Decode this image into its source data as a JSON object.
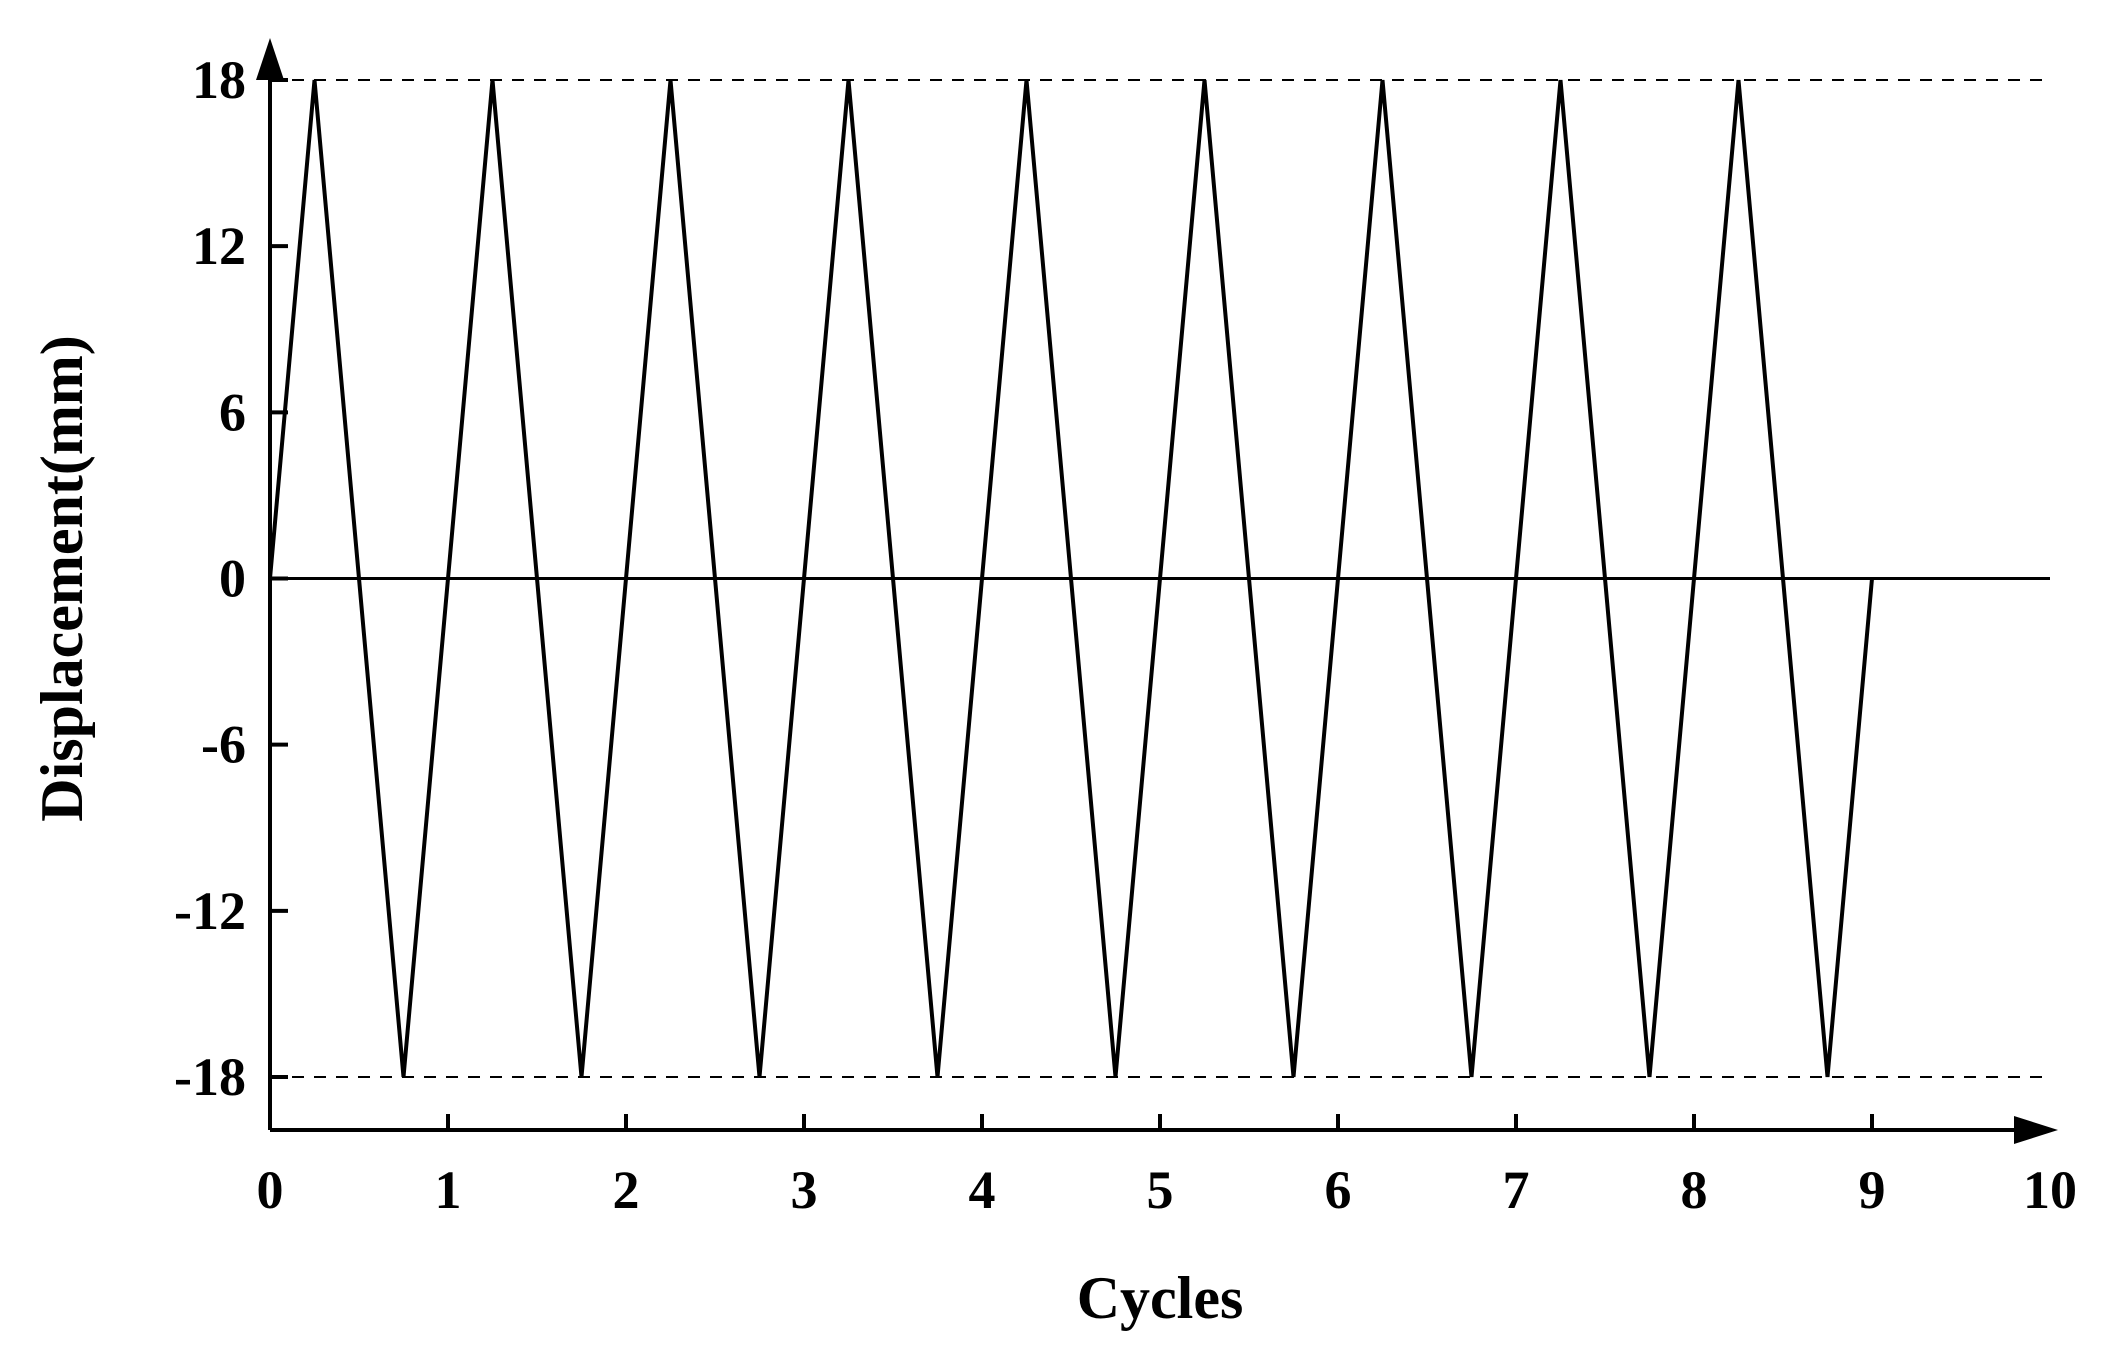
{
  "chart_data": {
    "type": "line",
    "xlabel": "Cycles",
    "ylabel": "Displacement(mm)",
    "xlim": [
      0,
      10
    ],
    "ylim": [
      -20,
      20
    ],
    "x_ticks": [
      0,
      1,
      2,
      3,
      4,
      5,
      6,
      7,
      8,
      9,
      10
    ],
    "y_ticks": [
      -18,
      -12,
      -6,
      0,
      6,
      12,
      18
    ],
    "x_tick_labels": [
      "0",
      "1",
      "2",
      "3",
      "4",
      "5",
      "6",
      "7",
      "8",
      "9",
      "10"
    ],
    "y_tick_labels": [
      "-18",
      "-12",
      "-6",
      "0",
      "6",
      "12",
      "18"
    ],
    "reference_lines": [
      {
        "y": 18,
        "style": "dashed"
      },
      {
        "y": -18,
        "style": "dashed"
      },
      {
        "y": 0,
        "style": "solid"
      }
    ],
    "series": [
      {
        "x": [
          0,
          0.25,
          0.75,
          1.25,
          1.75,
          2.25,
          2.75,
          3.25,
          3.75,
          4.25,
          4.75,
          5.25,
          5.75,
          6.25,
          6.75,
          7.25,
          7.75,
          8.25,
          8.75,
          9
        ],
        "y": [
          0,
          18,
          -18,
          18,
          -18,
          18,
          -18,
          18,
          -18,
          18,
          -18,
          18,
          -18,
          18,
          -18,
          18,
          -18,
          18,
          -18,
          0
        ]
      }
    ],
    "grid": false,
    "legend": "none",
    "colors": {
      "line": "#000000",
      "background": "#ffffff"
    }
  }
}
